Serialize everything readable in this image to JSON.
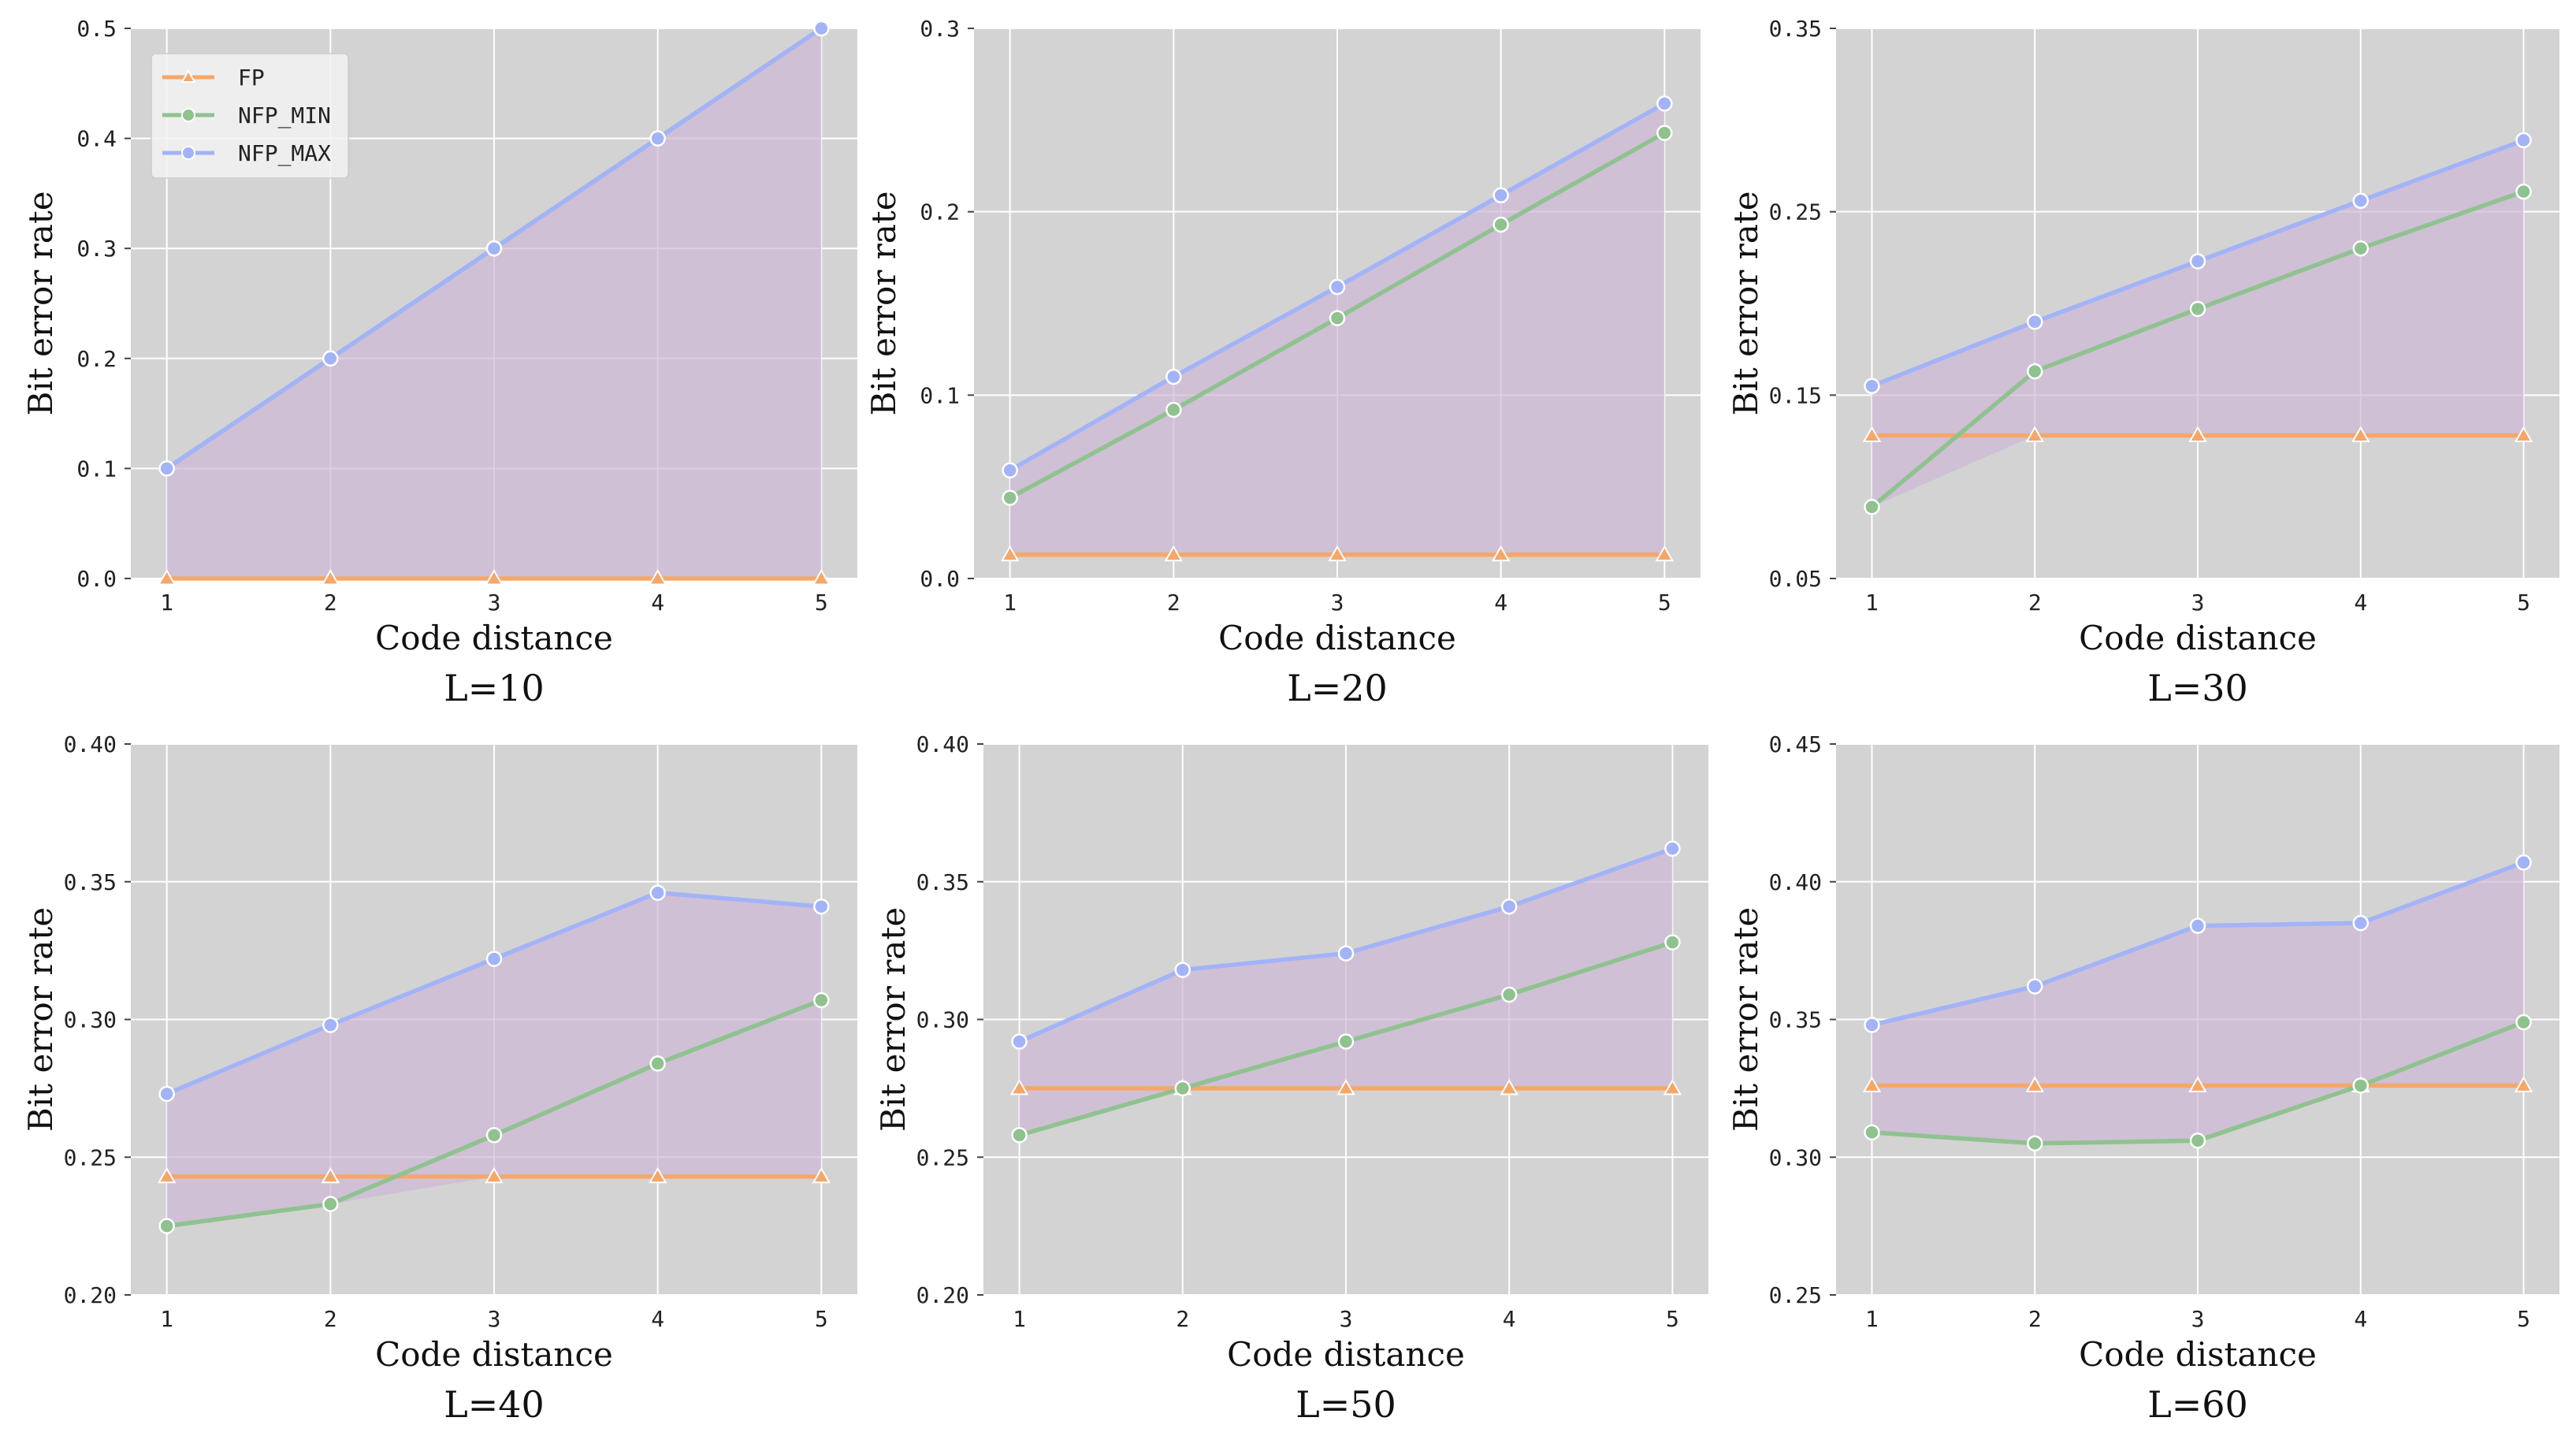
{
  "figure": {
    "series_legend": [
      {
        "key": "FP",
        "label": "FP",
        "color": "#f5a76a",
        "marker": "triangle"
      },
      {
        "key": "NFP_MIN",
        "label": "NFP_MIN",
        "color": "#8fc28f",
        "marker": "circle"
      },
      {
        "key": "NFP_MAX",
        "label": "NFP_MAX",
        "color": "#a3b3f8",
        "marker": "circle"
      }
    ],
    "fill_color": "#cdb8d6",
    "plot_background": "#d3d3d3"
  },
  "chart_data": [
    {
      "type": "line",
      "title": "L=10",
      "xlabel": "Code distance",
      "ylabel": "Bit error rate",
      "x": [
        1,
        2,
        3,
        4,
        5
      ],
      "ylim": [
        0.0,
        0.5
      ],
      "yticks": [
        "0.0",
        "0.1",
        "0.2",
        "0.3",
        "0.4",
        "0.5"
      ],
      "xticks": [
        "1",
        "2",
        "3",
        "4",
        "5"
      ],
      "legend": "top-left",
      "series": [
        {
          "name": "FP",
          "values": [
            0.0,
            0.0,
            0.0,
            0.0,
            0.0
          ]
        },
        {
          "name": "NFP_MIN",
          "values": [
            0.1,
            0.2,
            0.3,
            0.4,
            0.5
          ]
        },
        {
          "name": "NFP_MAX",
          "values": [
            0.1,
            0.2,
            0.3,
            0.4,
            0.5
          ]
        }
      ]
    },
    {
      "type": "line",
      "title": "L=20",
      "xlabel": "Code distance",
      "ylabel": "Bit error rate",
      "x": [
        1,
        2,
        3,
        4,
        5
      ],
      "ylim": [
        0.0,
        0.3
      ],
      "yticks": [
        "0.0",
        "0.1",
        "0.2",
        "0.3"
      ],
      "xticks": [
        "1",
        "2",
        "3",
        "4",
        "5"
      ],
      "series": [
        {
          "name": "FP",
          "values": [
            0.013,
            0.013,
            0.013,
            0.013,
            0.013
          ]
        },
        {
          "name": "NFP_MIN",
          "values": [
            0.044,
            0.092,
            0.142,
            0.193,
            0.243
          ]
        },
        {
          "name": "NFP_MAX",
          "values": [
            0.059,
            0.11,
            0.159,
            0.209,
            0.259
          ]
        }
      ]
    },
    {
      "type": "line",
      "title": "L=30",
      "xlabel": "Code distance",
      "ylabel": "Bit error rate",
      "x": [
        1,
        2,
        3,
        4,
        5
      ],
      "ylim": [
        0.05,
        0.35
      ],
      "yticks": [
        "0.05",
        "0.15",
        "0.25",
        "0.35"
      ],
      "xticks": [
        "1",
        "2",
        "3",
        "4",
        "5"
      ],
      "series": [
        {
          "name": "FP",
          "values": [
            0.128,
            0.128,
            0.128,
            0.128,
            0.128
          ]
        },
        {
          "name": "NFP_MIN",
          "values": [
            0.089,
            0.163,
            0.197,
            0.23,
            0.261
          ]
        },
        {
          "name": "NFP_MAX",
          "values": [
            0.155,
            0.19,
            0.223,
            0.256,
            0.289
          ]
        }
      ]
    },
    {
      "type": "line",
      "title": "L=40",
      "xlabel": "Code distance",
      "ylabel": "Bit error rate",
      "x": [
        1,
        2,
        3,
        4,
        5
      ],
      "ylim": [
        0.2,
        0.4
      ],
      "yticks": [
        "0.20",
        "0.25",
        "0.30",
        "0.35",
        "0.40"
      ],
      "xticks": [
        "1",
        "2",
        "3",
        "4",
        "5"
      ],
      "series": [
        {
          "name": "FP",
          "values": [
            0.243,
            0.243,
            0.243,
            0.243,
            0.243
          ]
        },
        {
          "name": "NFP_MIN",
          "values": [
            0.225,
            0.233,
            0.258,
            0.284,
            0.307
          ]
        },
        {
          "name": "NFP_MAX",
          "values": [
            0.273,
            0.298,
            0.322,
            0.346,
            0.341
          ]
        }
      ]
    },
    {
      "type": "line",
      "title": "L=50",
      "xlabel": "Code distance",
      "ylabel": "Bit error rate",
      "x": [
        1,
        2,
        3,
        4,
        5
      ],
      "ylim": [
        0.2,
        0.4
      ],
      "yticks": [
        "0.20",
        "0.25",
        "0.30",
        "0.35",
        "0.40"
      ],
      "xticks": [
        "1",
        "2",
        "3",
        "4",
        "5"
      ],
      "series": [
        {
          "name": "FP",
          "values": [
            0.275,
            0.275,
            0.275,
            0.275,
            0.275
          ]
        },
        {
          "name": "NFP_MIN",
          "values": [
            0.258,
            0.275,
            0.292,
            0.309,
            0.328
          ]
        },
        {
          "name": "NFP_MAX",
          "values": [
            0.292,
            0.318,
            0.324,
            0.341,
            0.362
          ]
        }
      ]
    },
    {
      "type": "line",
      "title": "L=60",
      "xlabel": "Code distance",
      "ylabel": "Bit error rate",
      "x": [
        1,
        2,
        3,
        4,
        5
      ],
      "ylim": [
        0.25,
        0.45
      ],
      "yticks": [
        "0.25",
        "0.30",
        "0.35",
        "0.40",
        "0.45"
      ],
      "xticks": [
        "1",
        "2",
        "3",
        "4",
        "5"
      ],
      "series": [
        {
          "name": "FP",
          "values": [
            0.326,
            0.326,
            0.326,
            0.326,
            0.326
          ]
        },
        {
          "name": "NFP_MIN",
          "values": [
            0.309,
            0.305,
            0.306,
            0.326,
            0.349
          ]
        },
        {
          "name": "NFP_MAX",
          "values": [
            0.348,
            0.362,
            0.384,
            0.385,
            0.407
          ]
        }
      ]
    }
  ]
}
